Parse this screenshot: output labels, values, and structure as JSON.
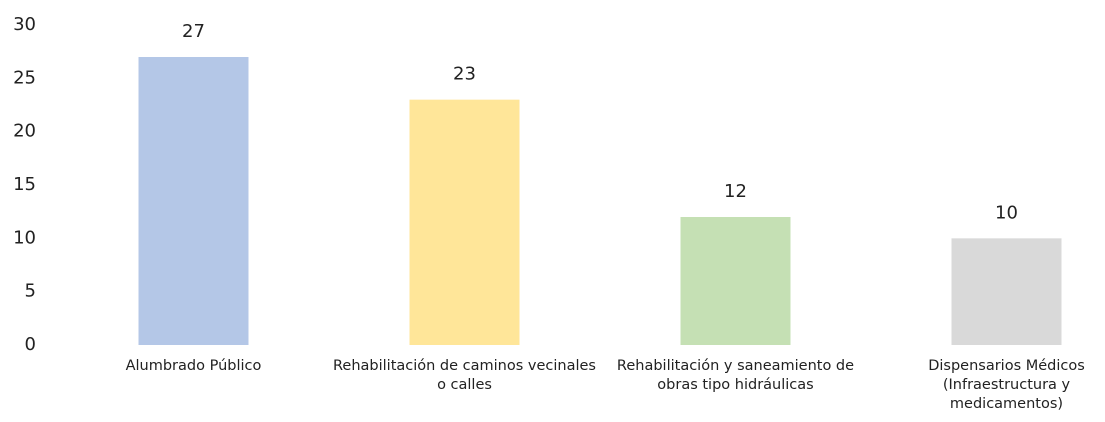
{
  "chart_data": {
    "type": "bar",
    "categories": [
      "Alumbrado Público",
      "Rehabilitación de caminos vecinales o calles",
      "Rehabilitación y saneamiento de obras tipo hidráulicas",
      "Dispensarios Médicos (Infraestructura y medicamentos)"
    ],
    "values": [
      27,
      23,
      12,
      10
    ],
    "colors": [
      "#b4c7e7",
      "#ffe699",
      "#c5e0b4",
      "#d9d9d9"
    ],
    "ylim": [
      0,
      30
    ],
    "yticks": [
      0,
      5,
      10,
      15,
      20,
      25,
      30
    ],
    "grid": false
  }
}
